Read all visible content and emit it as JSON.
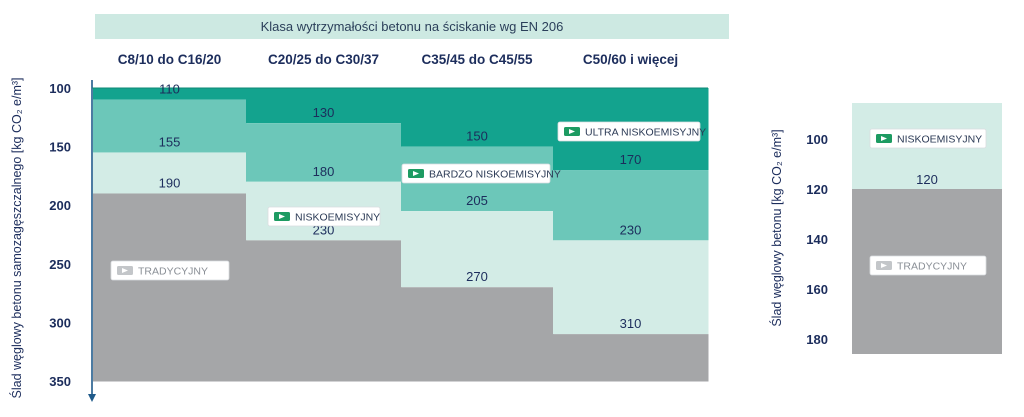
{
  "chart_data": [
    {
      "type": "area",
      "title": "Klasa wytrzymałości betonu na ściskanie wg EN 206",
      "ylabel": "Ślad węglowy betonu samozagęszczalnego  [kg CO₂ e/m³]",
      "ylim": [
        100,
        350
      ],
      "y_inverted": true,
      "yticks": [
        "100",
        "150",
        "200",
        "250",
        "300",
        "350"
      ],
      "categories": [
        "C8/10 do C16/20",
        "C20/25 do C30/37",
        "C35/45 do C45/55",
        "C50/60 i więcej"
      ],
      "series": [
        {
          "name": "ULTRA NISKOEMISYJNY",
          "values": [
            110,
            130,
            150,
            170
          ],
          "color": "#13a38e"
        },
        {
          "name": "BARDZO NISKOEMISYJNY",
          "values": [
            155,
            180,
            205,
            230
          ],
          "color": "#6cc7b9"
        },
        {
          "name": "NISKOEMISYJNY",
          "values": [
            190,
            230,
            270,
            310
          ],
          "color": "#d3ece6"
        },
        {
          "name": "TRADYCYJNY",
          "color": "#a5a6a8"
        }
      ],
      "data_labels": [
        [
          "110",
          "155",
          "190"
        ],
        [
          "130",
          "180",
          "230"
        ],
        [
          "150",
          "205",
          "270"
        ],
        [
          "170",
          "230",
          "310"
        ]
      ]
    },
    {
      "type": "area",
      "ylabel": "Ślad węglowy betonu  [kg CO₂ e/m³]",
      "ylim": [
        85,
        185
      ],
      "y_inverted": true,
      "yticks": [
        "100",
        "120",
        "140",
        "160",
        "180"
      ],
      "series": [
        {
          "name": "NISKOEMISYJNY",
          "values": [
            120
          ],
          "color": "#d3ece6"
        },
        {
          "name": "TRADYCYJNY",
          "color": "#a5a6a8"
        }
      ],
      "data_labels": [
        [
          "120"
        ]
      ]
    }
  ],
  "colors": {
    "ultra": "#13a38e",
    "bardzo": "#6cc7b9",
    "nisko": "#d3ece6",
    "trad": "#a5a6a8",
    "axis": "#1f5a8a",
    "header_band": "#cde9e2",
    "badge_icon": "#1d9b62"
  },
  "icons": {
    "badge": "eco-concrete-arrow-icon"
  }
}
